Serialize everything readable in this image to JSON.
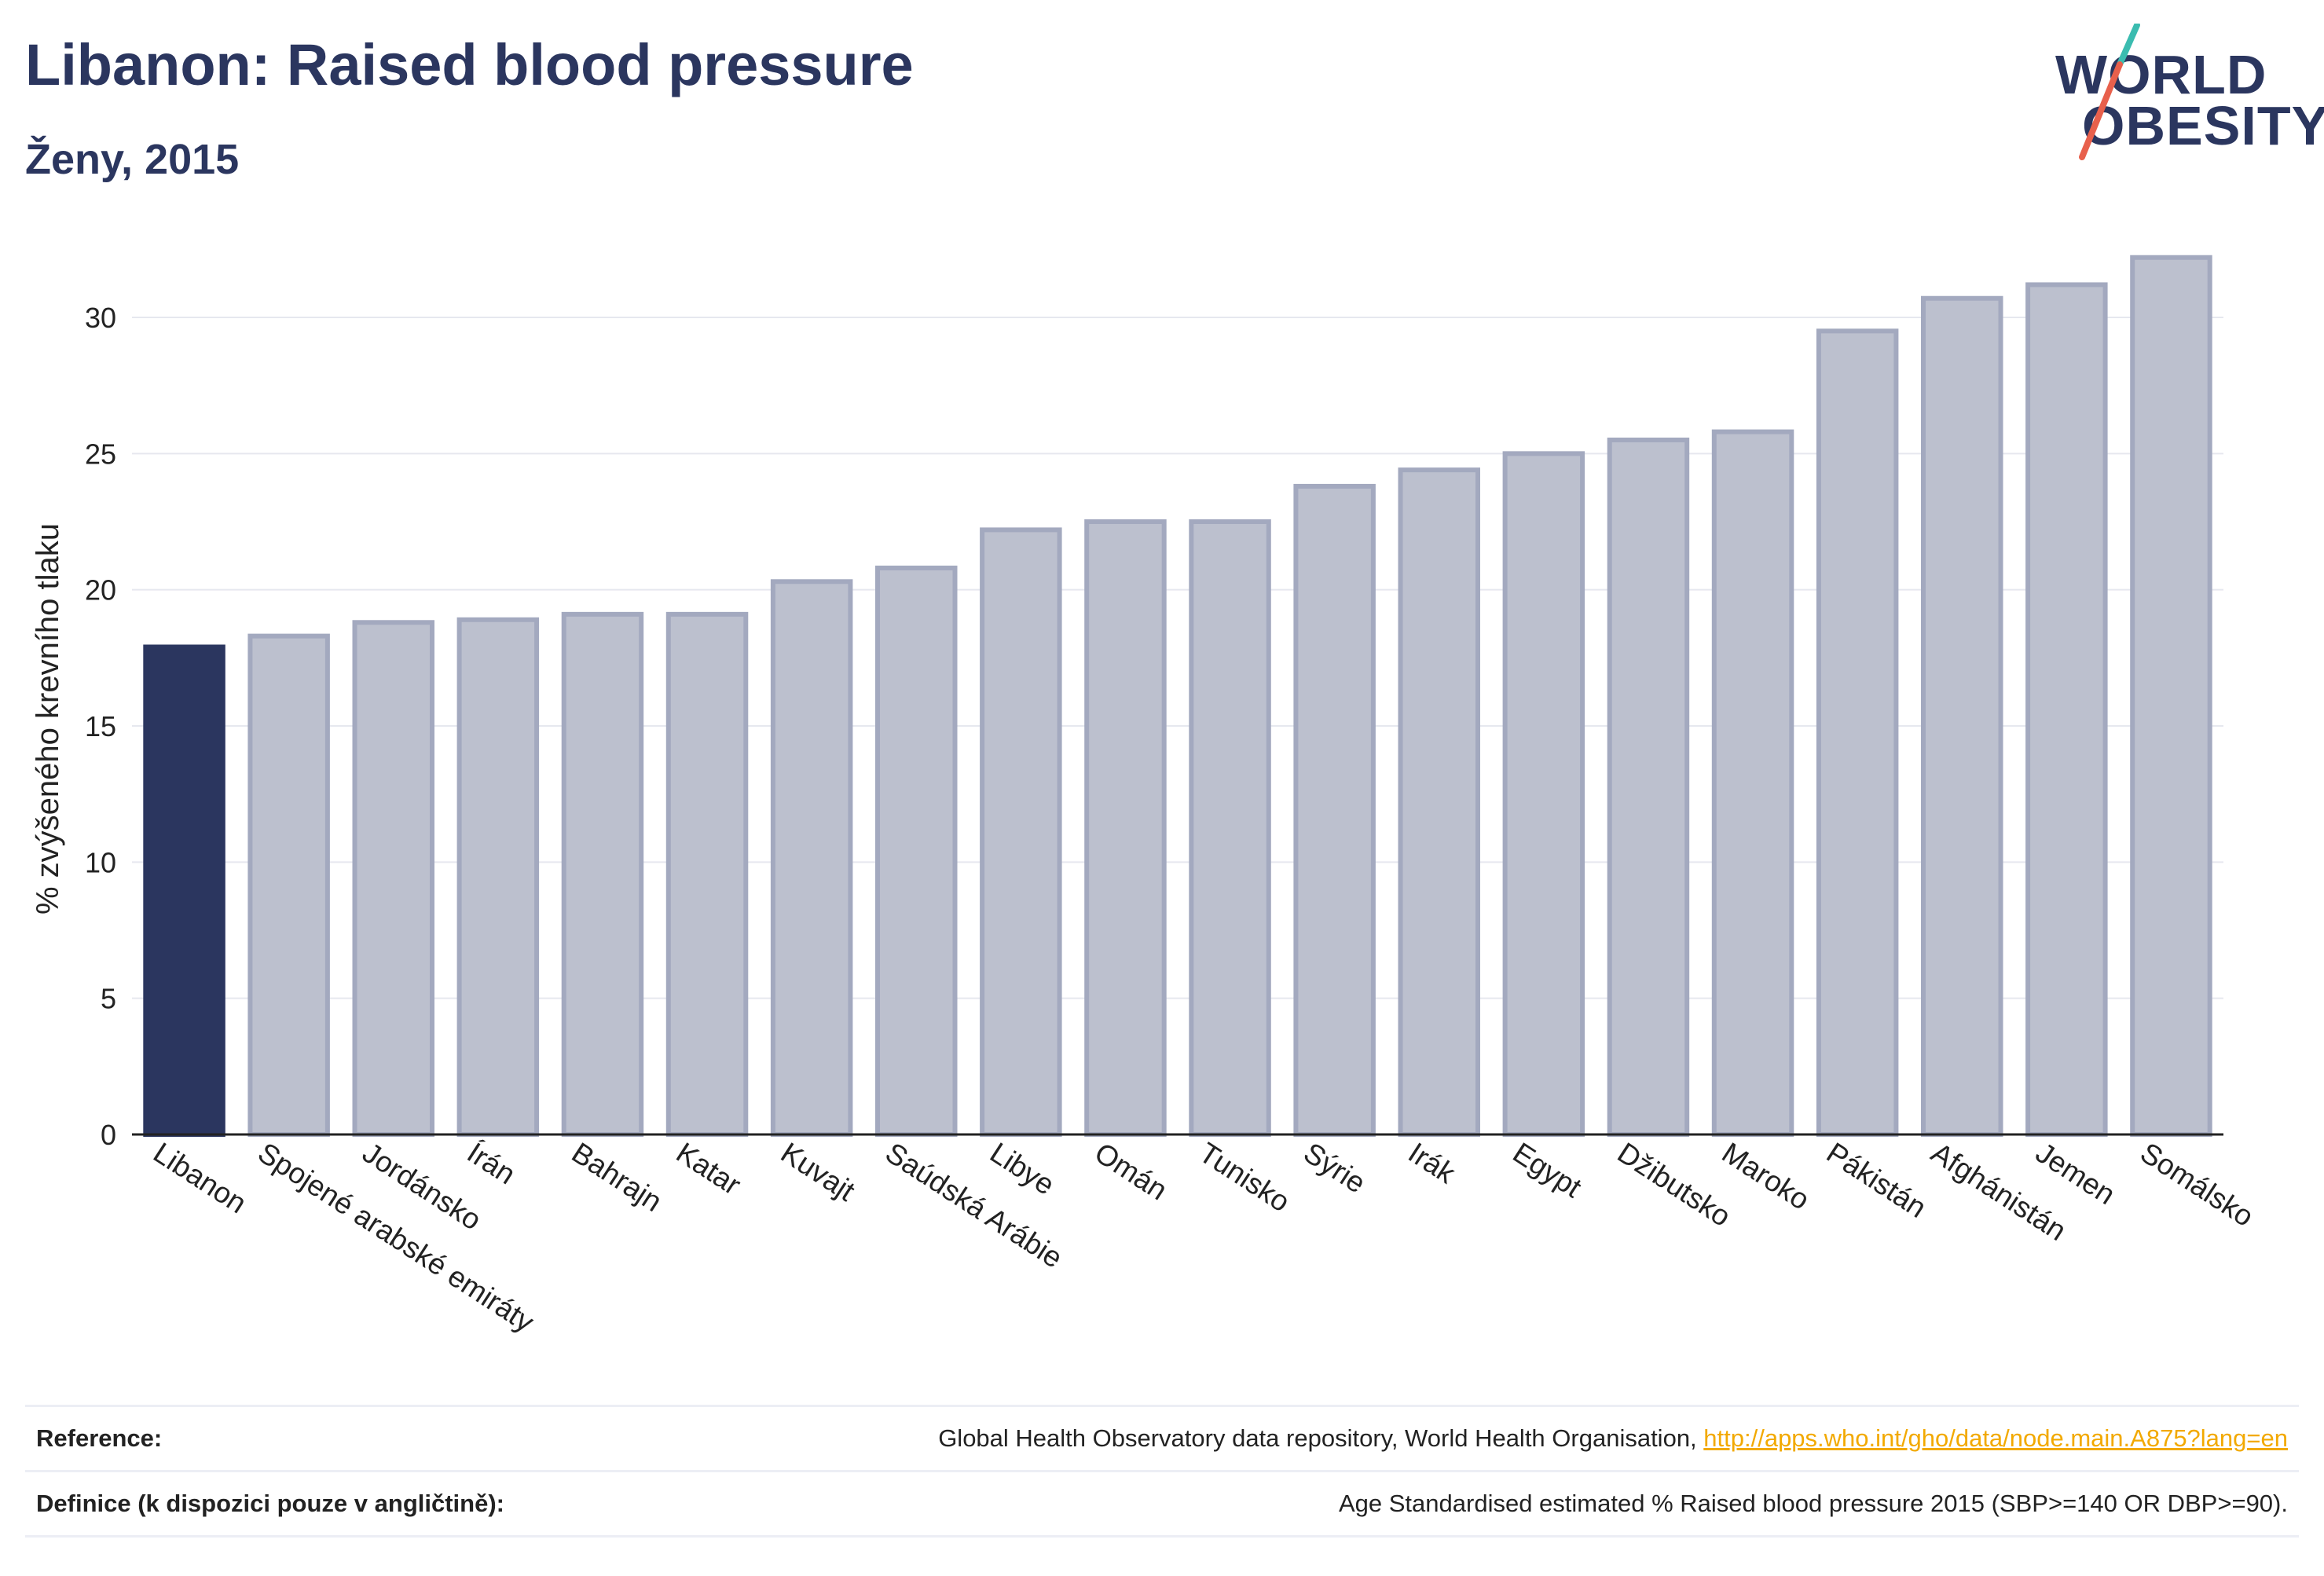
{
  "header": {
    "title": "Libanon: Raised blood pressure",
    "subtitle": "Ženy, 2015"
  },
  "logo": {
    "line1": "WORLD",
    "line2": "OBESITY"
  },
  "chart_data": {
    "type": "bar",
    "title": "Libanon: Raised blood pressure",
    "subtitle": "Ženy, 2015",
    "ylabel": "% zvýšeného krevního tlaku",
    "xlabel": "",
    "ylim": [
      0,
      33
    ],
    "yticks": [
      0,
      5,
      10,
      15,
      20,
      25,
      30
    ],
    "grid": true,
    "highlight_category": "Libanon",
    "highlight_color": "#2b365f",
    "bar_color": "#bcc0ce",
    "bar_edge_color": "#a3a9bf",
    "categories": [
      "Libanon",
      "Spojené arabské emiráty",
      "Jordánsko",
      "Írán",
      "Bahrajn",
      "Katar",
      "Kuvajt",
      "Saúdská Arábie",
      "Libye",
      "Omán",
      "Tunisko",
      "Sýrie",
      "Irák",
      "Egypt",
      "Džibutsko",
      "Maroko",
      "Pákistán",
      "Afghánistán",
      "Jemen",
      "Somálsko"
    ],
    "values": [
      17.9,
      18.3,
      18.8,
      18.9,
      19.1,
      19.1,
      20.3,
      20.8,
      22.2,
      22.5,
      22.5,
      23.8,
      24.4,
      25.0,
      25.5,
      25.8,
      29.5,
      30.7,
      31.2,
      32.2
    ]
  },
  "footer": {
    "reference_label": "Reference:",
    "reference_text": "Global Health Observatory data repository, World Health Organisation, ",
    "reference_link": "http://apps.who.int/gho/data/node.main.A875?lang=en",
    "definition_label": "Definice (k dispozici pouze v angličtině):",
    "definition_text": "Age Standardised estimated % Raised blood pressure 2015 (SBP>=140 OR DBP>=90)."
  }
}
